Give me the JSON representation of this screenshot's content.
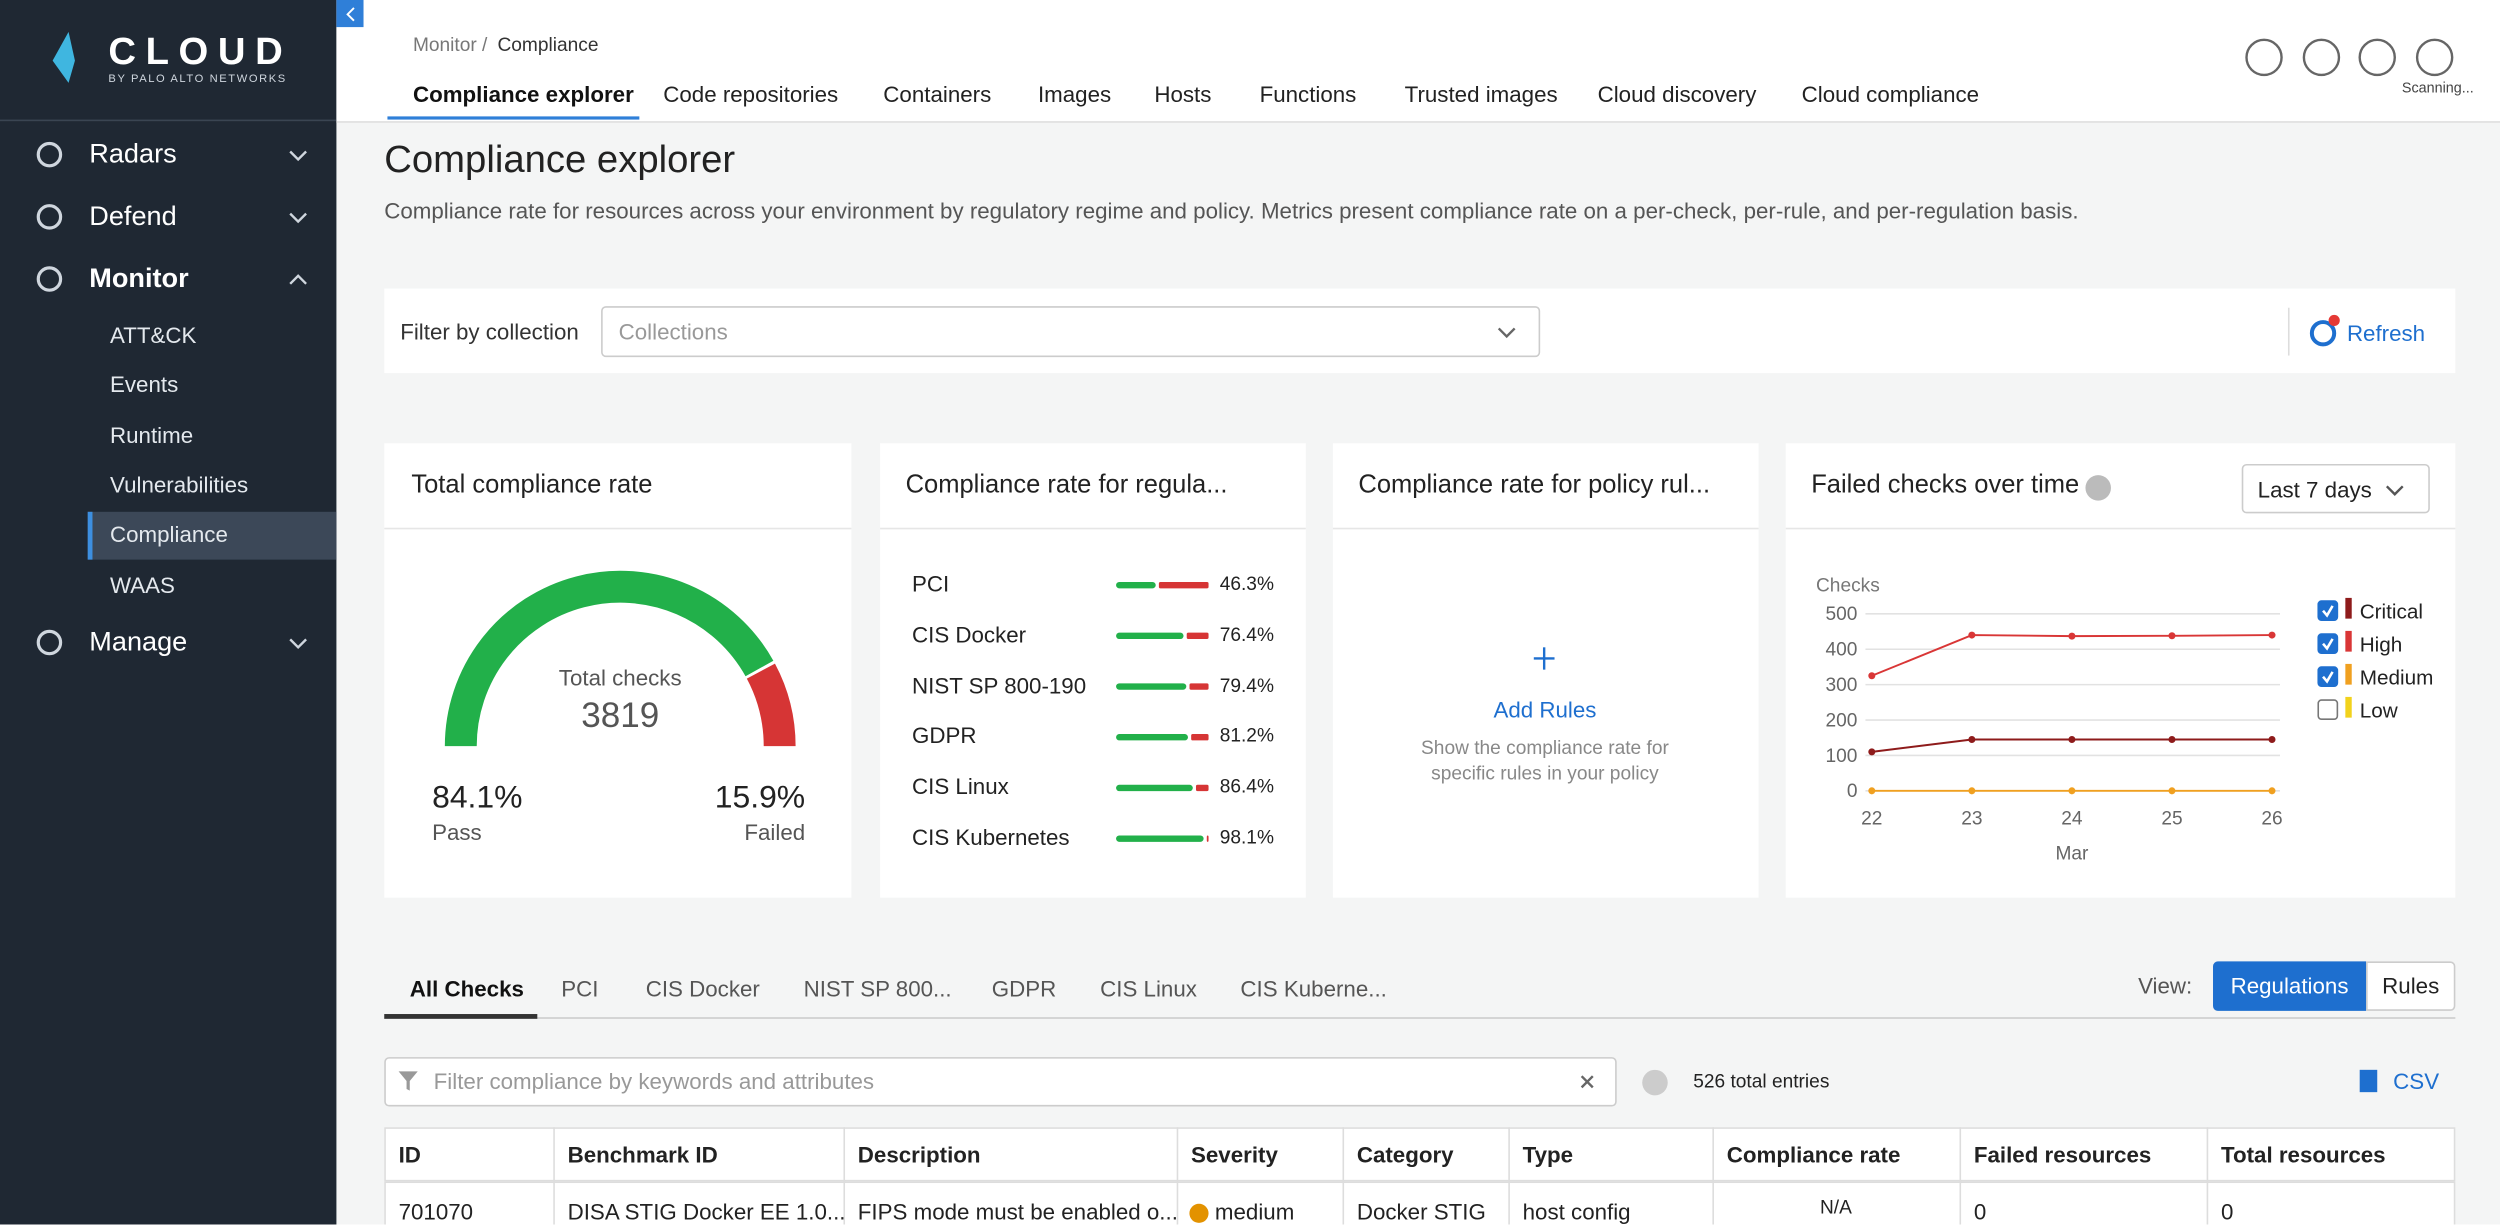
{
  "sidebar": {
    "logo": "CLOUD",
    "logo_sub": "BY PALO ALTO NETWORKS",
    "nav": [
      {
        "label": "Radars"
      },
      {
        "label": "Defend"
      },
      {
        "label": "Monitor",
        "children": [
          "ATT&CK",
          "Events",
          "Runtime",
          "Vulnerabilities",
          "Compliance",
          "WAAS"
        ]
      },
      {
        "label": "Manage"
      }
    ]
  },
  "header": {
    "breadcrumb": [
      "Monitor /",
      "Compliance"
    ],
    "tabs": [
      "Compliance explorer",
      "Code repositories",
      "Containers",
      "Images",
      "Hosts",
      "Functions",
      "Trusted images",
      "Cloud discovery",
      "Cloud compliance"
    ],
    "status": "Scanning..."
  },
  "page": {
    "title": "Compliance explorer",
    "description": "Compliance rate for resources across your environment by regulatory regime and policy. Metrics present compliance rate on a per-check, per-rule, and per-regulation basis."
  },
  "filter": {
    "label": "Filter by collection",
    "placeholder": "Collections",
    "refresh": "Refresh"
  },
  "total_card": {
    "title": "Total compliance rate",
    "checks_label": "Total checks",
    "checks": 3819,
    "pass": {
      "value": 84.1,
      "label": "84.1%"
    },
    "pass_label": "Pass",
    "failed": {
      "value": 15.9,
      "label": "15.9%"
    },
    "failed_label": "Failed"
  },
  "regulation_card": {
    "title": "Compliance rate for regula...",
    "rows": [
      {
        "name": "PCI",
        "rate": 46.3,
        "rate_label": "46.3%"
      },
      {
        "name": "CIS Docker",
        "rate": 76.4,
        "rate_label": "76.4%"
      },
      {
        "name": "NIST SP 800-190",
        "rate": 79.4,
        "rate_label": "79.4%"
      },
      {
        "name": "GDPR",
        "rate": 81.2,
        "rate_label": "81.2%"
      },
      {
        "name": "CIS Linux",
        "rate": 86.4,
        "rate_label": "86.4%"
      },
      {
        "name": "CIS Kubernetes",
        "rate": 98.1,
        "rate_label": "98.1%"
      }
    ]
  },
  "policy_card": {
    "title": "Compliance rate for policy rul...",
    "action": "Add Rules",
    "hint": "Show the compliance rate for specific rules in your policy"
  },
  "chart_data": {
    "type": "line",
    "title": "Failed checks over time",
    "range": "Last 7 days",
    "y_label": "Checks",
    "x_label": "Mar",
    "categories": [
      "22",
      "23",
      "24",
      "25",
      "26"
    ],
    "ylim": [
      0,
      500
    ],
    "yticks": [
      0,
      100,
      200,
      300,
      400,
      500
    ],
    "grid": true,
    "series": [
      {
        "name": "Critical",
        "color": "#8e1b1b",
        "checked": true,
        "values": [
          110,
          145,
          145,
          145,
          145
        ]
      },
      {
        "name": "High",
        "color": "#d93636",
        "checked": true,
        "values": [
          325,
          440,
          437,
          438,
          440
        ]
      },
      {
        "name": "Medium",
        "color": "#f0a020",
        "checked": true,
        "values": [
          0,
          0,
          0,
          0,
          0
        ]
      },
      {
        "name": "Low",
        "color": "#f2d21c",
        "checked": false
      }
    ]
  },
  "lower_tabs": {
    "tabs": [
      "All Checks",
      "PCI",
      "CIS Docker",
      "NIST SP 800...",
      "GDPR",
      "CIS Linux",
      "CIS Kuberne..."
    ],
    "view_label": "View:",
    "views": [
      "Regulations",
      "Rules"
    ]
  },
  "search": {
    "placeholder": "Filter compliance by keywords and attributes",
    "count": "526 total entries",
    "export": "CSV"
  },
  "table": {
    "columns": [
      "ID",
      "Benchmark ID",
      "Description",
      "Severity",
      "Category",
      "Type",
      "Compliance rate",
      "Failed resources",
      "Total resources"
    ],
    "rows": [
      [
        "701070",
        "DISA STIG Docker EE 1.0...",
        "FIPS mode must be enabled o...",
        "medium",
        "Docker STIG",
        "host config",
        "N/A",
        "0",
        "0"
      ]
    ]
  }
}
